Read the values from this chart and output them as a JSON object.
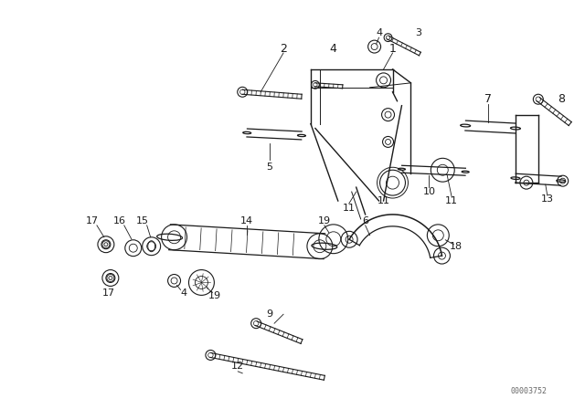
{
  "watermark": "00003752",
  "background_color": "#ffffff",
  "line_color": "#1a1a1a",
  "fig_width": 6.4,
  "fig_height": 4.48,
  "dpi": 100
}
